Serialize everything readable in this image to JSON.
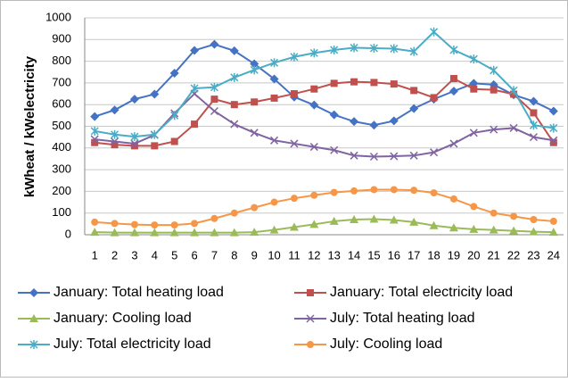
{
  "chart_data": {
    "type": "line",
    "y_label": "kWheat / kWelectricity",
    "x": [
      1,
      2,
      3,
      4,
      5,
      6,
      7,
      8,
      9,
      10,
      11,
      12,
      13,
      14,
      15,
      16,
      17,
      18,
      19,
      20,
      21,
      22,
      23,
      24
    ],
    "xlim": [
      0.5,
      24.5
    ],
    "ylim": [
      0,
      1000
    ],
    "yticks": [
      0,
      100,
      200,
      300,
      400,
      500,
      600,
      700,
      800,
      900,
      1000
    ],
    "grid": true,
    "legend": "bottom",
    "series": [
      {
        "name": "January: Total heating load",
        "color": "#4472c4",
        "marker": "diamond",
        "values": [
          545,
          575,
          625,
          648,
          745,
          850,
          878,
          848,
          788,
          718,
          635,
          598,
          553,
          522,
          505,
          525,
          582,
          625,
          662,
          698,
          692,
          645,
          615,
          570
        ]
      },
      {
        "name": "January: Total electricity load",
        "color": "#c0504d",
        "marker": "square",
        "values": [
          425,
          415,
          410,
          410,
          430,
          510,
          625,
          600,
          612,
          630,
          650,
          672,
          698,
          705,
          702,
          695,
          665,
          632,
          720,
          672,
          668,
          648,
          562,
          425
        ]
      },
      {
        "name": "January: Cooling load",
        "color": "#9bbb59",
        "marker": "triangle",
        "values": [
          12,
          10,
          10,
          10,
          10,
          10,
          10,
          10,
          12,
          22,
          35,
          48,
          62,
          70,
          72,
          68,
          58,
          42,
          32,
          25,
          22,
          18,
          14,
          12
        ]
      },
      {
        "name": "July: Total heating load",
        "color": "#8064a2",
        "marker": "x",
        "values": [
          440,
          430,
          420,
          460,
          560,
          650,
          570,
          510,
          470,
          435,
          420,
          405,
          390,
          365,
          360,
          362,
          365,
          380,
          420,
          470,
          485,
          492,
          450,
          435
        ]
      },
      {
        "name": "July: Total electricity load",
        "color": "#4bacc6",
        "marker": "star",
        "values": [
          478,
          462,
          452,
          462,
          550,
          675,
          680,
          725,
          760,
          793,
          820,
          838,
          852,
          862,
          860,
          858,
          845,
          935,
          852,
          810,
          758,
          665,
          505,
          492
        ]
      },
      {
        "name": "July: Cooling load",
        "color": "#f79646",
        "marker": "circle",
        "values": [
          58,
          52,
          47,
          45,
          45,
          52,
          75,
          100,
          125,
          150,
          168,
          182,
          195,
          202,
          208,
          208,
          205,
          193,
          165,
          130,
          100,
          85,
          70,
          62
        ]
      }
    ]
  }
}
